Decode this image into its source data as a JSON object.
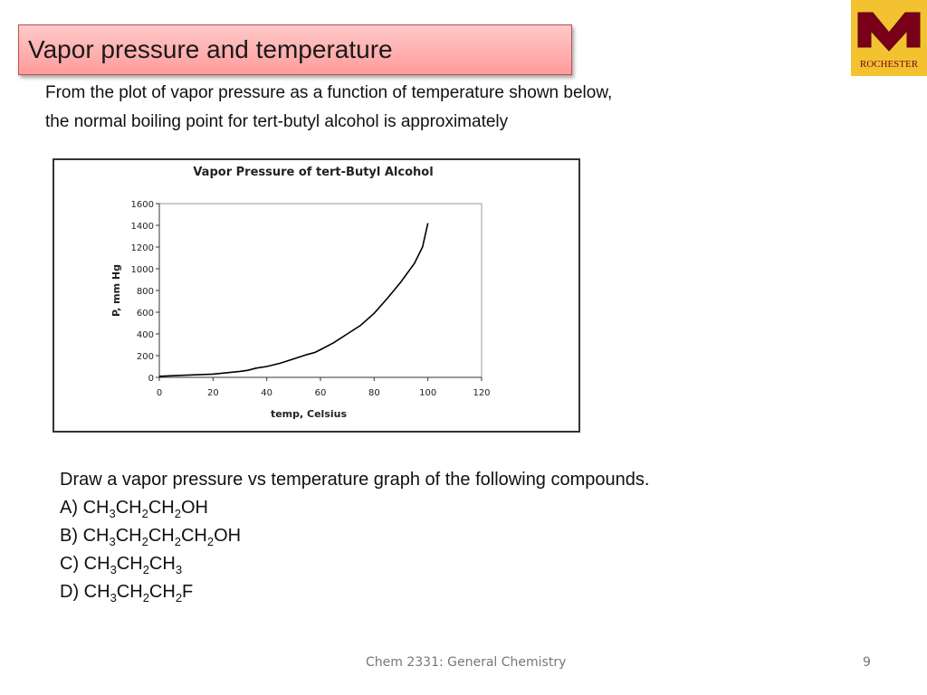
{
  "slide": {
    "title": "Vapor pressure and temperature",
    "logo_text": "ROCHESTER",
    "prompt_lines": [
      "From the plot of vapor pressure as a function of temperature shown below,",
      "the normal boiling point for tert-butyl alcohol is approximately"
    ],
    "question": "Draw a vapor pressure vs temperature graph of the following compounds.",
    "options": [
      {
        "label": "A)",
        "parts": [
          "CH",
          "3",
          "CH",
          "2",
          "CH",
          "2",
          "OH"
        ]
      },
      {
        "label": "B)",
        "parts": [
          "CH",
          "3",
          "CH",
          "2",
          "CH",
          "2",
          "CH",
          "2",
          "OH"
        ]
      },
      {
        "label": "C)",
        "parts": [
          "CH",
          "3",
          "CH",
          "2",
          "CH",
          "3"
        ]
      },
      {
        "label": "D)",
        "parts": [
          "CH",
          "3",
          "CH",
          "2",
          "CH",
          "2",
          "F"
        ]
      }
    ],
    "footer": "Chem 2331: General Chemistry",
    "page_number": "9"
  },
  "chart_data": {
    "type": "line",
    "title": "Vapor Pressure of tert-Butyl Alcohol",
    "xlabel": "temp, Celsius",
    "ylabel": "P, mm Hg",
    "x": [
      0,
      10,
      20,
      30,
      33,
      36,
      40,
      45,
      50,
      55,
      58,
      60,
      65,
      70,
      75,
      80,
      85,
      90,
      95,
      98,
      100
    ],
    "values": [
      10,
      20,
      30,
      55,
      65,
      85,
      100,
      130,
      170,
      210,
      230,
      255,
      320,
      400,
      480,
      590,
      730,
      880,
      1050,
      1200,
      1420
    ],
    "color": "#000000",
    "xlim": [
      0,
      120
    ],
    "xticks": [
      0,
      20,
      40,
      60,
      80,
      100,
      120
    ],
    "ylim": [
      0,
      1600
    ],
    "yticks": [
      0,
      200,
      400,
      600,
      800,
      1000,
      1200,
      1400,
      1600
    ]
  }
}
